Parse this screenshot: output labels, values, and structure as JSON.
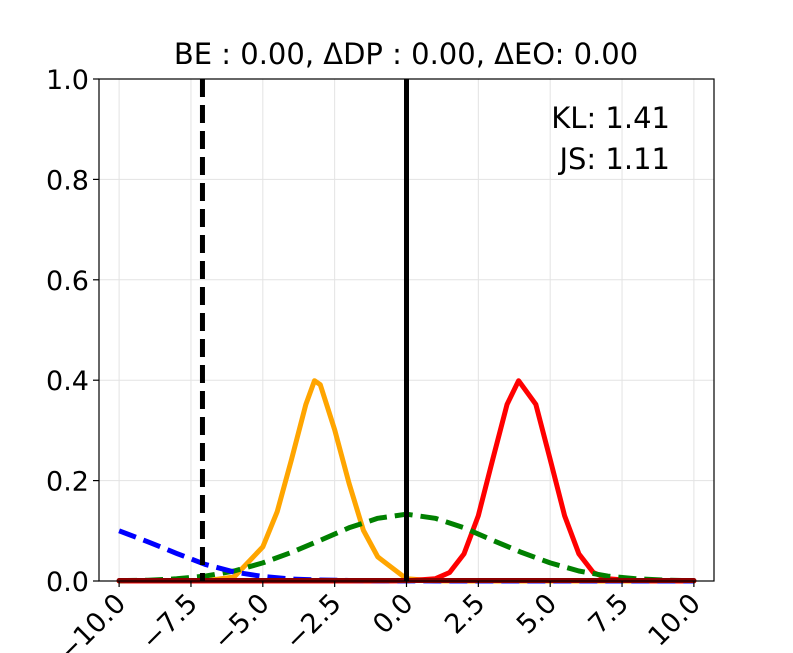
{
  "chart_data": {
    "type": "line",
    "title": "BE : 0.00, ΔDP : 0.00, ΔEO: 0.00",
    "xlabel": "",
    "ylabel": "",
    "xlim": [
      -10.7,
      10.7
    ],
    "ylim": [
      0,
      1.0
    ],
    "grid": true,
    "x_ticks": [
      -10.0,
      -7.5,
      -5.0,
      -2.5,
      0.0,
      2.5,
      5.0,
      7.5,
      10.0
    ],
    "x_tick_labels": [
      "−10.0",
      "−7.5",
      "−5.0",
      "−2.5",
      "0.0",
      "2.5",
      "5.0",
      "7.5",
      "10.0"
    ],
    "y_ticks": [
      0.0,
      0.2,
      0.4,
      0.6,
      0.8,
      1.0
    ],
    "y_tick_labels": [
      "0.0",
      "0.2",
      "0.4",
      "0.6",
      "0.8",
      "1.0"
    ],
    "annotations": [
      "KL: 1.41",
      "JS: 1.11"
    ],
    "series": [
      {
        "color": "#ffa500",
        "style": "solid",
        "x": [
          -10,
          -9,
          -8,
          -7,
          -6,
          -5,
          -4.5,
          -4,
          -3.5,
          -3.2,
          -3,
          -2.5,
          -2,
          -1.5,
          -1,
          0,
          1,
          2,
          3,
          4,
          5,
          6,
          7,
          8,
          9,
          10
        ],
        "y": [
          0,
          0,
          0,
          0.0004,
          0.0079,
          0.068,
          0.138,
          0.242,
          0.352,
          0.399,
          0.391,
          0.301,
          0.195,
          0.101,
          0.048,
          0.0044,
          0.0002,
          0,
          0,
          0,
          0,
          0,
          0,
          0,
          0,
          0
        ]
      },
      {
        "color": "#ff0000",
        "style": "solid",
        "x": [
          -10,
          -8,
          -6,
          -4,
          -2,
          -1,
          0,
          1,
          1.5,
          2,
          2.5,
          3,
          3.5,
          3.9,
          4.5,
          5,
          5.5,
          6,
          6.5,
          7,
          8,
          9,
          10
        ],
        "y": [
          0,
          0,
          0,
          0,
          0,
          0,
          0.0001,
          0.0044,
          0.017,
          0.054,
          0.13,
          0.242,
          0.352,
          0.399,
          0.352,
          0.242,
          0.13,
          0.054,
          0.017,
          0.0044,
          0.0001,
          0,
          0
        ]
      },
      {
        "color": "#008000",
        "style": "dashed",
        "x": [
          -10,
          -9,
          -8,
          -7,
          -6,
          -5,
          -4,
          -3,
          -2,
          -1,
          0,
          1,
          2,
          3,
          4,
          5,
          6,
          7,
          8,
          9,
          10
        ],
        "y": [
          0.0005,
          0.0016,
          0.0043,
          0.0098,
          0.02,
          0.036,
          0.057,
          0.081,
          0.106,
          0.125,
          0.133,
          0.125,
          0.106,
          0.081,
          0.057,
          0.036,
          0.02,
          0.0098,
          0.0043,
          0.0016,
          0.0005
        ]
      },
      {
        "color": "#0000ff",
        "style": "dashed",
        "x": [
          -10,
          -9,
          -8,
          -7,
          -6,
          -5,
          -4,
          -3,
          -2,
          -1,
          0,
          2,
          4,
          6,
          8,
          10
        ],
        "y": [
          0.1,
          0.078,
          0.055,
          0.033,
          0.018,
          0.009,
          0.004,
          0.002,
          0.001,
          0.0005,
          0.0002,
          0,
          0,
          0,
          0,
          0
        ]
      },
      {
        "color": "#8b0000",
        "style": "solid",
        "x": [
          -10,
          10
        ],
        "y": [
          0.001,
          0.001
        ]
      }
    ],
    "vlines": [
      {
        "x": -7.1,
        "color": "#000000",
        "style": "dashed"
      },
      {
        "x": 0.0,
        "color": "#000000",
        "style": "solid"
      }
    ]
  }
}
